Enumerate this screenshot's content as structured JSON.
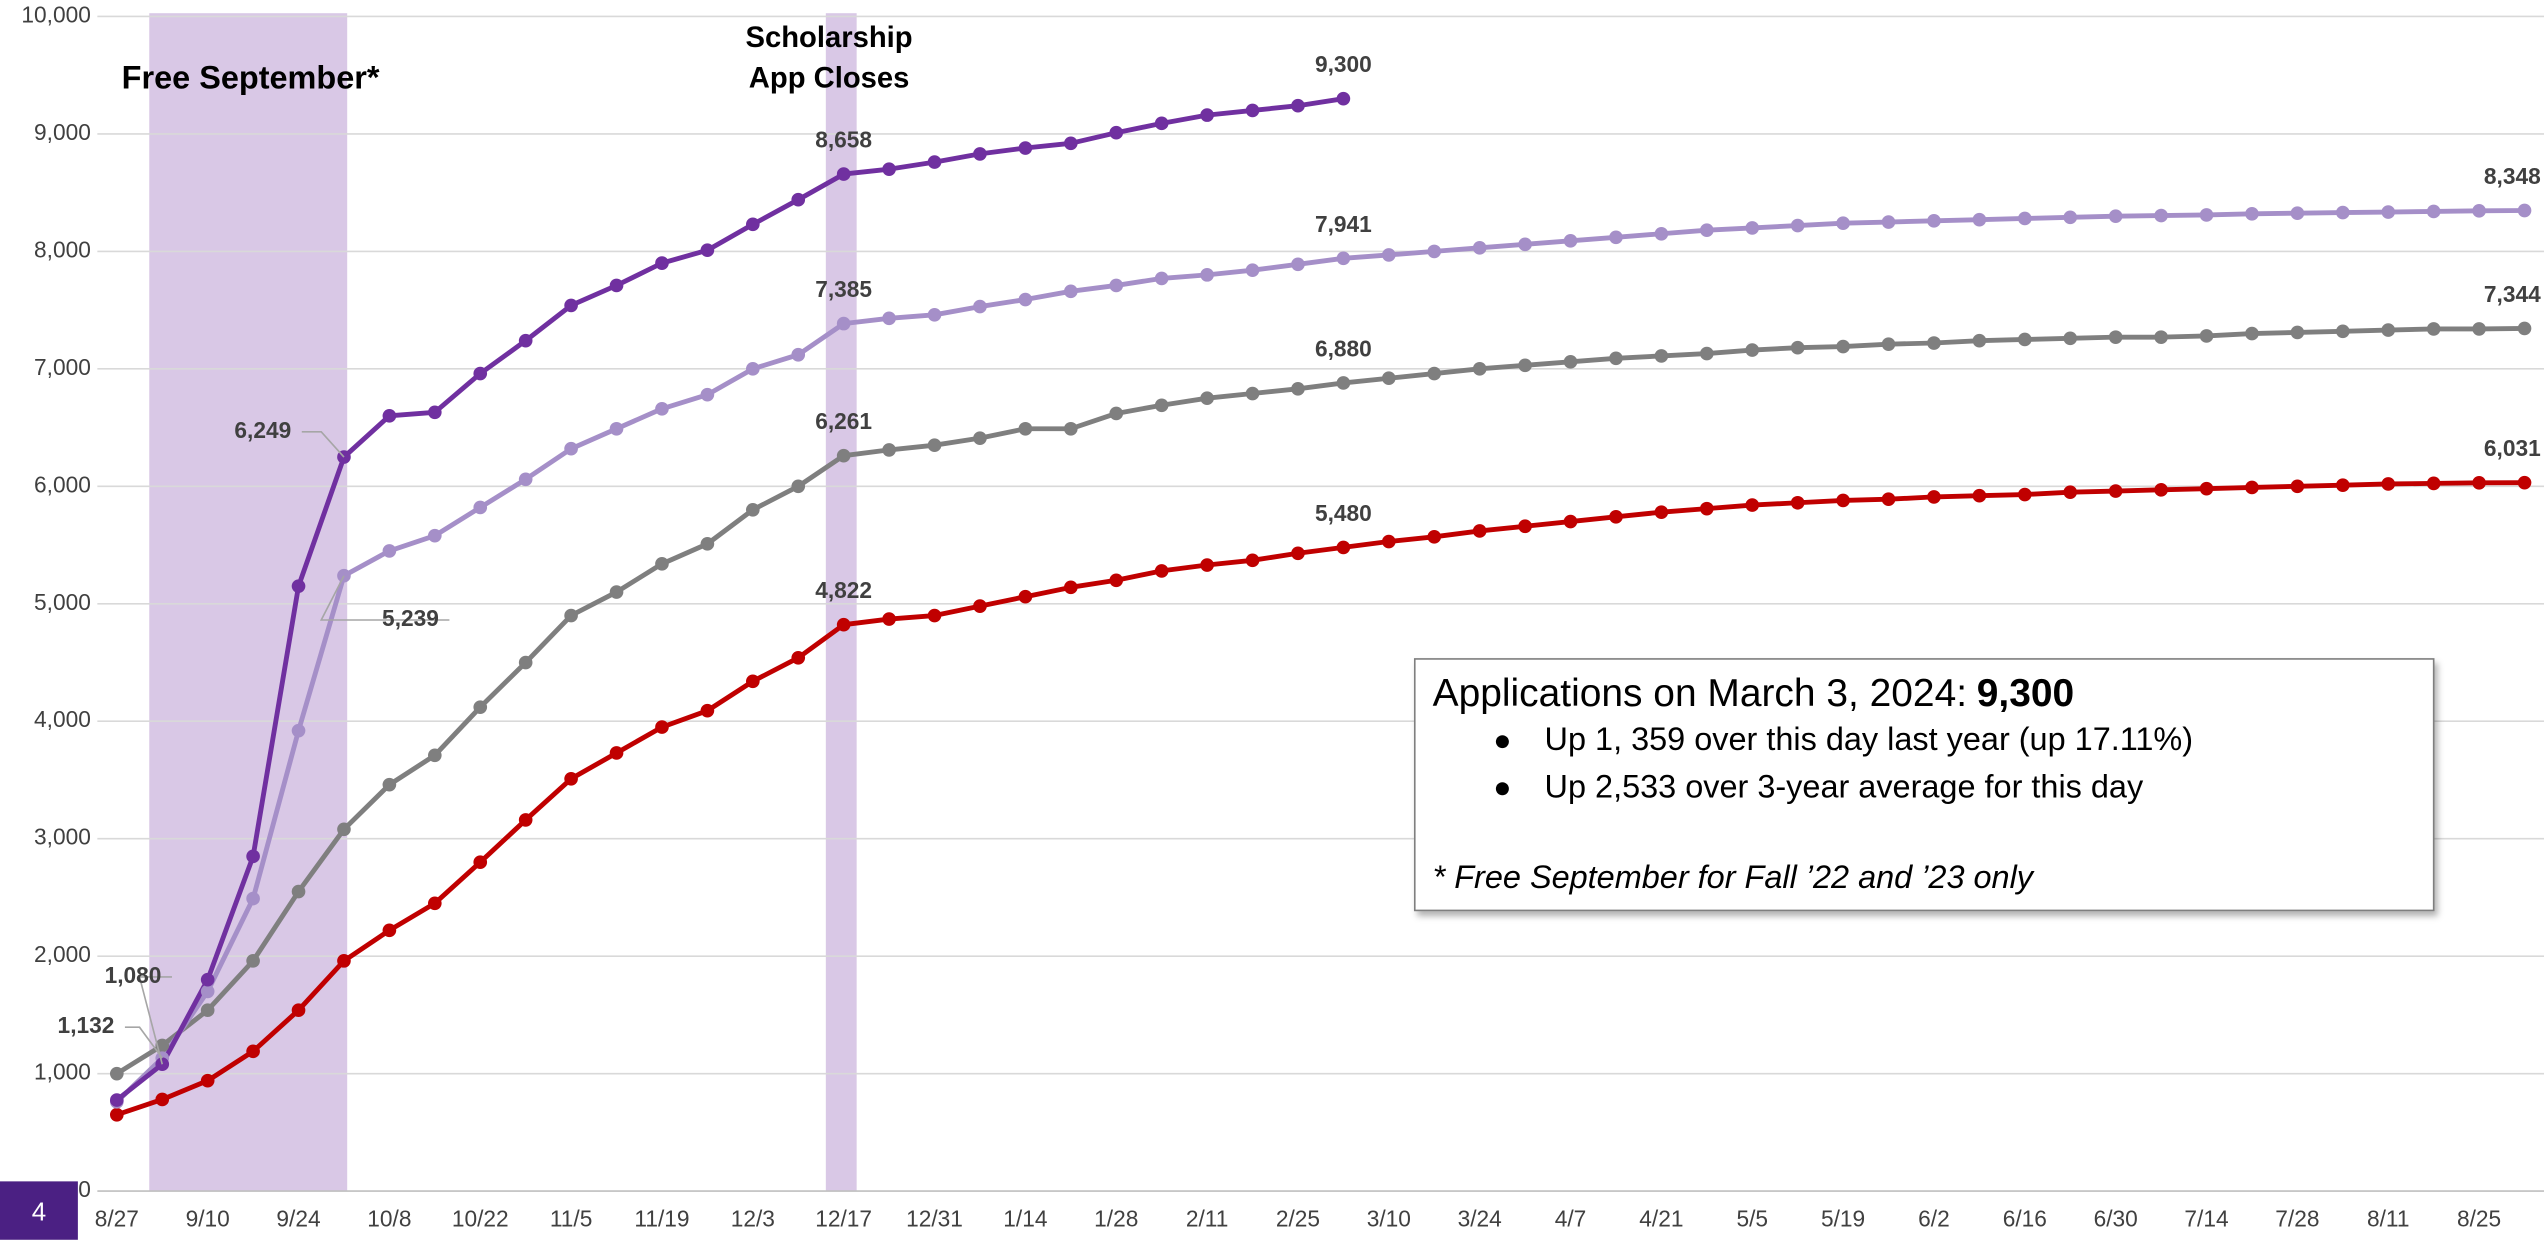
{
  "chart_data": {
    "type": "line",
    "categories": [
      "8/27",
      null,
      "9/10",
      null,
      "9/24",
      null,
      "10/8",
      null,
      "10/22",
      null,
      "11/5",
      null,
      "11/19",
      null,
      "12/3",
      null,
      "12/17",
      null,
      "12/31",
      null,
      "1/14",
      null,
      "1/28",
      null,
      "2/11",
      null,
      "2/25",
      null,
      "3/10",
      null,
      "3/24",
      null,
      "4/7",
      null,
      "4/21",
      null,
      "5/5",
      null,
      "5/19",
      null,
      "6/2",
      null,
      "6/16",
      null,
      "6/30",
      null,
      "7/14",
      null,
      "7/28",
      null,
      "8/11",
      null,
      "8/25",
      null
    ],
    "ylim": [
      0,
      10000
    ],
    "yticks": [
      0,
      {
        "value": 1000,
        "label": "1,000"
      },
      {
        "value": 2000,
        "label": "2,000"
      },
      {
        "value": 3000,
        "label": "3,000"
      },
      {
        "value": 4000,
        "label": "4,000"
      },
      {
        "value": 5000,
        "label": "5,000"
      },
      {
        "value": 6000,
        "label": "6,000"
      },
      {
        "value": 7000,
        "label": "7,000"
      },
      {
        "value": 8000,
        "label": "8,000"
      },
      {
        "value": 9000,
        "label": "9,000"
      },
      {
        "value": 10000,
        "label": "10,000"
      }
    ],
    "grid": true,
    "series": [
      {
        "color": "#c00000",
        "values": [
          650,
          780,
          940,
          1190,
          1540,
          1960,
          2220,
          2450,
          2800,
          3160,
          3510,
          3730,
          3950,
          4090,
          4340,
          4540,
          4822,
          4870,
          4900,
          4980,
          5060,
          5140,
          5200,
          5280,
          5330,
          5370,
          5430,
          5480,
          5530,
          5570,
          5620,
          5660,
          5700,
          5740,
          5780,
          5810,
          5840,
          5860,
          5880,
          5890,
          5910,
          5920,
          5930,
          5950,
          5960,
          5970,
          5980,
          5990,
          6000,
          6010,
          6020,
          6025,
          6030,
          6031
        ],
        "value_labels": [
          null,
          null,
          null,
          null,
          null,
          null,
          null,
          null,
          null,
          null,
          null,
          null,
          null,
          null,
          null,
          null,
          "4,822",
          null,
          null,
          null,
          null,
          null,
          null,
          null,
          null,
          null,
          null,
          "5,480",
          null,
          null,
          null,
          null,
          null,
          null,
          null,
          null,
          null,
          null,
          null,
          null,
          null,
          null,
          null,
          null,
          null,
          null,
          null,
          null,
          null,
          null,
          null,
          null,
          null,
          "6,031"
        ]
      },
      {
        "color": "#7f7f7f",
        "values": [
          1000,
          1240,
          1540,
          1960,
          2550,
          3080,
          3460,
          3710,
          4120,
          4500,
          4900,
          5100,
          5340,
          5510,
          5800,
          6000,
          6261,
          6310,
          6350,
          6410,
          6490,
          6490,
          6620,
          6690,
          6750,
          6790,
          6830,
          6880,
          6920,
          6960,
          7000,
          7030,
          7060,
          7090,
          7110,
          7130,
          7160,
          7180,
          7190,
          7210,
          7220,
          7240,
          7250,
          7260,
          7270,
          7270,
          7280,
          7300,
          7310,
          7320,
          7330,
          7340,
          7340,
          7344
        ],
        "value_labels": [
          null,
          null,
          null,
          null,
          null,
          null,
          null,
          null,
          null,
          null,
          null,
          null,
          null,
          null,
          null,
          null,
          "6,261",
          null,
          null,
          null,
          null,
          null,
          null,
          null,
          null,
          null,
          null,
          "6,880",
          null,
          null,
          null,
          null,
          null,
          null,
          null,
          null,
          null,
          null,
          null,
          null,
          null,
          null,
          null,
          null,
          null,
          null,
          null,
          null,
          null,
          null,
          null,
          null,
          null,
          "7,344"
        ]
      },
      {
        "color": "#a58fc8",
        "values": [
          760,
          1132,
          1700,
          2490,
          3920,
          5239,
          5450,
          5580,
          5820,
          6060,
          6320,
          6490,
          6660,
          6780,
          7000,
          7120,
          7385,
          7430,
          7460,
          7530,
          7590,
          7660,
          7710,
          7770,
          7800,
          7840,
          7890,
          7941,
          7970,
          8000,
          8030,
          8060,
          8090,
          8120,
          8150,
          8180,
          8200,
          8220,
          8240,
          8250,
          8260,
          8270,
          8280,
          8290,
          8300,
          8305,
          8310,
          8320,
          8325,
          8330,
          8335,
          8340,
          8345,
          8348
        ],
        "value_labels": [
          null,
          "1,132",
          null,
          null,
          null,
          "5,239",
          null,
          null,
          null,
          null,
          null,
          null,
          null,
          null,
          null,
          null,
          "7,385",
          null,
          null,
          null,
          null,
          null,
          null,
          null,
          null,
          null,
          null,
          "7,941",
          null,
          null,
          null,
          null,
          null,
          null,
          null,
          null,
          null,
          null,
          null,
          null,
          null,
          null,
          null,
          null,
          null,
          null,
          null,
          null,
          null,
          null,
          null,
          null,
          null,
          "8,348"
        ]
      },
      {
        "color": "#7030a0",
        "values": [
          775,
          1080,
          1800,
          2850,
          5150,
          6249,
          6600,
          6630,
          6960,
          7240,
          7540,
          7710,
          7900,
          8010,
          8230,
          8440,
          8658,
          8700,
          8760,
          8830,
          8880,
          8920,
          9010,
          9090,
          9160,
          9200,
          9240,
          9300,
          null,
          null,
          null,
          null,
          null,
          null,
          null,
          null,
          null,
          null,
          null,
          null,
          null,
          null,
          null,
          null,
          null,
          null,
          null,
          null,
          null,
          null,
          null,
          null,
          null,
          null
        ],
        "value_labels": [
          null,
          "1,080",
          null,
          null,
          null,
          "6,249",
          null,
          null,
          null,
          null,
          null,
          null,
          null,
          null,
          null,
          null,
          "8,658",
          null,
          null,
          null,
          null,
          null,
          null,
          null,
          null,
          null,
          null,
          "9,300",
          null,
          null,
          null,
          null,
          null,
          null,
          null,
          null,
          null,
          null,
          null,
          null,
          null,
          null,
          null,
          null,
          null,
          null,
          null,
          null,
          null,
          null,
          null,
          null,
          null,
          null
        ]
      }
    ],
    "annotations": {
      "free_september": "Free September*",
      "scholarship": [
        "Scholarship",
        "App Closes"
      ]
    },
    "info_box": {
      "heading": "Applications on March 3, 2024:",
      "heading_value": "9,300",
      "bullets": [
        "Up 1, 359 over this day last year (up 17.11%)",
        "Up 2,533 over 3-year average for this day"
      ],
      "footnote": "* Free September for Fall ’22 and ’23 only"
    },
    "slide_number": "4"
  }
}
